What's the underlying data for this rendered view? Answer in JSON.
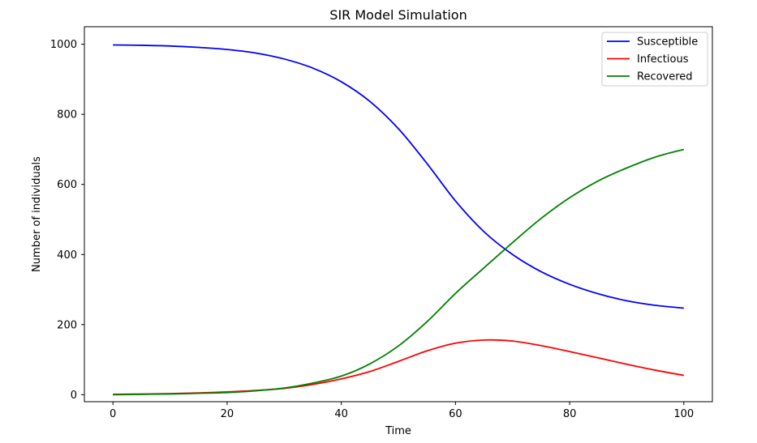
{
  "chart_data": {
    "type": "line",
    "title": "SIR Model Simulation",
    "xlabel": "Time",
    "ylabel": "Number of individuals",
    "xlim": [
      -5,
      105
    ],
    "ylim": [
      -20,
      1050
    ],
    "xticks": [
      0,
      20,
      40,
      60,
      80,
      100
    ],
    "yticks": [
      0,
      200,
      400,
      600,
      800,
      1000
    ],
    "grid": false,
    "legend_position": "top-right",
    "x": [
      0,
      5,
      10,
      15,
      20,
      25,
      30,
      35,
      40,
      45,
      50,
      55,
      60,
      65,
      70,
      75,
      80,
      85,
      90,
      95,
      100
    ],
    "series": [
      {
        "name": "Susceptible",
        "color": "#0000ff",
        "values": [
          998,
          997,
          995,
          991,
          985,
          975,
          958,
          932,
          893,
          837,
          759,
          660,
          553,
          465,
          400,
          351,
          315,
          288,
          268,
          255,
          247
        ]
      },
      {
        "name": "Infectious",
        "color": "#ff0000",
        "values": [
          1,
          2,
          3,
          5,
          8,
          12,
          18,
          29,
          45,
          66,
          95,
          125,
          147,
          156,
          153,
          140,
          123,
          105,
          87,
          70,
          55
        ]
      },
      {
        "name": "Recovered",
        "color": "#008000",
        "values": [
          0,
          1,
          2,
          4,
          6,
          11,
          19,
          33,
          53,
          88,
          139,
          208,
          289,
          362,
          434,
          503,
          562,
          610,
          647,
          678,
          700
        ]
      }
    ]
  }
}
